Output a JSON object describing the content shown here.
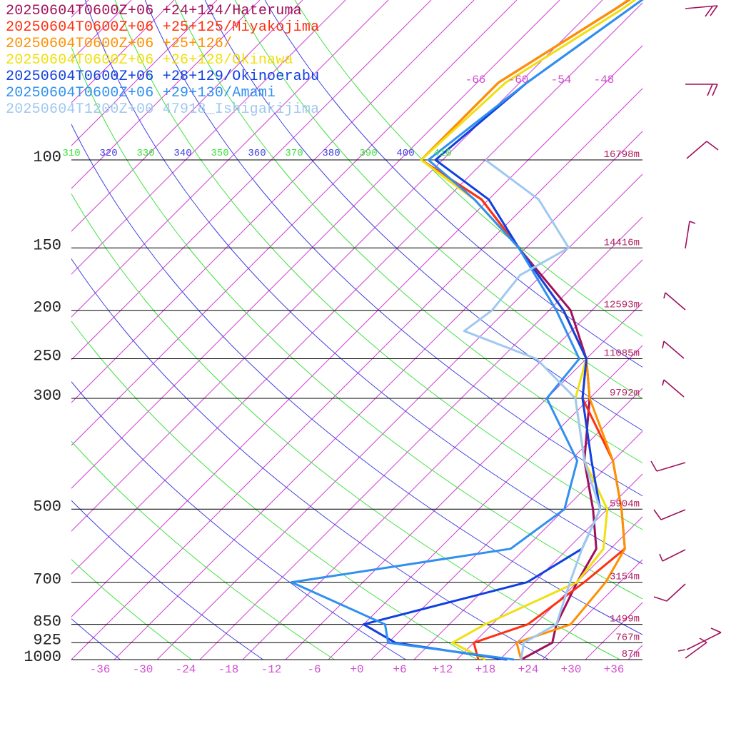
{
  "chart_data": {
    "type": "line",
    "title": "",
    "xlabel": "",
    "ylabel": "",
    "x_axis_ticks": [
      "-36",
      "-30",
      "-24",
      "-18",
      "-12",
      "-6",
      "+0",
      "+6",
      "+12",
      "+18",
      "+24",
      "+30",
      "+36"
    ],
    "x_range_degC": [
      -40,
      40
    ],
    "pressure_levels": [
      {
        "label": "100",
        "p": 100,
        "height": "16798m"
      },
      {
        "label": "150",
        "p": 150,
        "height": "14416m"
      },
      {
        "label": "200",
        "p": 200,
        "height": "12593m"
      },
      {
        "label": "250",
        "p": 250,
        "height": "11085m"
      },
      {
        "label": "300",
        "p": 300,
        "height": "9792m"
      },
      {
        "label": "500",
        "p": 500,
        "height": "5904m"
      },
      {
        "label": "700",
        "p": 700,
        "height": "3154m"
      },
      {
        "label": "850",
        "p": 850,
        "height": "1499m"
      },
      {
        "label": "925",
        "p": 925,
        "height": "767m"
      },
      {
        "label": "1000",
        "p": 1000,
        "height": "87m"
      }
    ],
    "theta_labels": [
      {
        "text": "310",
        "color": "#40e040"
      },
      {
        "text": "320",
        "color": "#4040e0"
      },
      {
        "text": "330",
        "color": "#40e040"
      },
      {
        "text": "340",
        "color": "#4040e0"
      },
      {
        "text": "350",
        "color": "#40e040"
      },
      {
        "text": "360",
        "color": "#4040e0"
      },
      {
        "text": "370",
        "color": "#40e040"
      },
      {
        "text": "380",
        "color": "#4040e0"
      },
      {
        "text": "390",
        "color": "#40e040"
      },
      {
        "text": "400",
        "color": "#4040e0"
      },
      {
        "text": "410",
        "color": "#40e040"
      }
    ],
    "isotherm_top_labels": [
      "-66",
      "-60",
      "-54",
      "-48"
    ],
    "legend_placement": "top-left",
    "series": [
      {
        "name": "20250604T0600Z+06 +24+124/Hateruma",
        "color": "#a0105a",
        "points": [
          [
            1000,
            23
          ],
          [
            925,
            25
          ],
          [
            850,
            23
          ],
          [
            700,
            20
          ],
          [
            600,
            18
          ],
          [
            500,
            12
          ],
          [
            400,
            4
          ],
          [
            300,
            -4
          ],
          [
            250,
            -10
          ],
          [
            200,
            -19
          ],
          [
            150,
            -35
          ],
          [
            120,
            -47
          ],
          [
            100,
            -61
          ],
          [
            70,
            -61
          ],
          [
            50,
            -55
          ],
          [
            30,
            -47
          ]
        ]
      },
      {
        "name": "20250604T0600Z+06 +25+125/Miyakojima",
        "color": "#ff3010",
        "points": [
          [
            1000,
            17
          ],
          [
            925,
            14
          ],
          [
            850,
            19
          ],
          [
            700,
            21
          ],
          [
            600,
            22
          ],
          [
            500,
            16
          ],
          [
            400,
            8
          ],
          [
            300,
            -5
          ],
          [
            250,
            -10
          ],
          [
            200,
            -20
          ],
          [
            150,
            -35
          ],
          [
            120,
            -47
          ],
          [
            100,
            -61
          ],
          [
            70,
            -61
          ],
          [
            50,
            -55
          ],
          [
            30,
            -47
          ]
        ]
      },
      {
        "name": "20250604T0600Z+06 +25+126/",
        "color": "#ff9000",
        "points": [
          [
            1000,
            23
          ],
          [
            925,
            20
          ],
          [
            850,
            25
          ],
          [
            700,
            24
          ],
          [
            600,
            22
          ],
          [
            500,
            16
          ],
          [
            400,
            8
          ],
          [
            300,
            -4
          ],
          [
            250,
            -10
          ],
          [
            200,
            -20
          ],
          [
            150,
            -35
          ],
          [
            120,
            -48
          ],
          [
            100,
            -61
          ],
          [
            70,
            -61
          ],
          [
            50,
            -55
          ],
          [
            30,
            -48
          ]
        ]
      },
      {
        "name": "20250604T0600Z+06 +26+128/Okinawa",
        "color": "#f0e010",
        "points": [
          [
            1000,
            18
          ],
          [
            925,
            11
          ],
          [
            850,
            13
          ],
          [
            700,
            20
          ],
          [
            600,
            19
          ],
          [
            500,
            14
          ],
          [
            400,
            4
          ],
          [
            300,
            -6
          ],
          [
            250,
            -10
          ],
          [
            200,
            -20
          ],
          [
            150,
            -35
          ],
          [
            120,
            -48
          ],
          [
            100,
            -61
          ],
          [
            70,
            -60
          ],
          [
            50,
            -54
          ],
          [
            30,
            -48
          ]
        ]
      },
      {
        "name": "20250604T0600Z+06 +28+129/Okinoerabu",
        "color": "#1040e0",
        "points": [
          [
            1000,
            21
          ],
          [
            925,
            3
          ],
          [
            850,
            -4
          ],
          [
            700,
            13
          ],
          [
            600,
            16
          ],
          [
            500,
            13
          ],
          [
            400,
            5
          ],
          [
            300,
            -5
          ],
          [
            250,
            -10
          ],
          [
            200,
            -20
          ],
          [
            150,
            -35
          ],
          [
            120,
            -46
          ],
          [
            100,
            -59
          ],
          [
            70,
            -57
          ],
          [
            50,
            -53
          ],
          [
            30,
            -47
          ]
        ]
      },
      {
        "name": "20250604T0600Z+06 +29+130/Amami",
        "color": "#3090f0",
        "points": [
          [
            1000,
            22
          ],
          [
            925,
            2
          ],
          [
            850,
            -1
          ],
          [
            700,
            -20
          ],
          [
            600,
            6
          ],
          [
            500,
            8
          ],
          [
            400,
            3
          ],
          [
            300,
            -10
          ],
          [
            250,
            -11
          ],
          [
            200,
            -21
          ],
          [
            150,
            -35
          ],
          [
            120,
            -48
          ],
          [
            100,
            -60
          ],
          [
            70,
            -57
          ],
          [
            50,
            -53
          ],
          [
            30,
            -47
          ]
        ]
      },
      {
        "name": "20250604T1200Z+00 47918_Ishigakijima",
        "color": "#a0c8f0",
        "points": [
          [
            1000,
            23
          ],
          [
            925,
            21
          ],
          [
            850,
            23
          ],
          [
            700,
            19
          ],
          [
            600,
            16
          ],
          [
            500,
            13
          ],
          [
            400,
            4
          ],
          [
            300,
            -6
          ],
          [
            250,
            -17
          ],
          [
            220,
            -31
          ],
          [
            200,
            -30
          ],
          [
            170,
            -31
          ],
          [
            150,
            -28
          ],
          [
            120,
            -39
          ],
          [
            100,
            -52
          ]
        ]
      }
    ],
    "wind_barb_color": "#a0105a"
  }
}
